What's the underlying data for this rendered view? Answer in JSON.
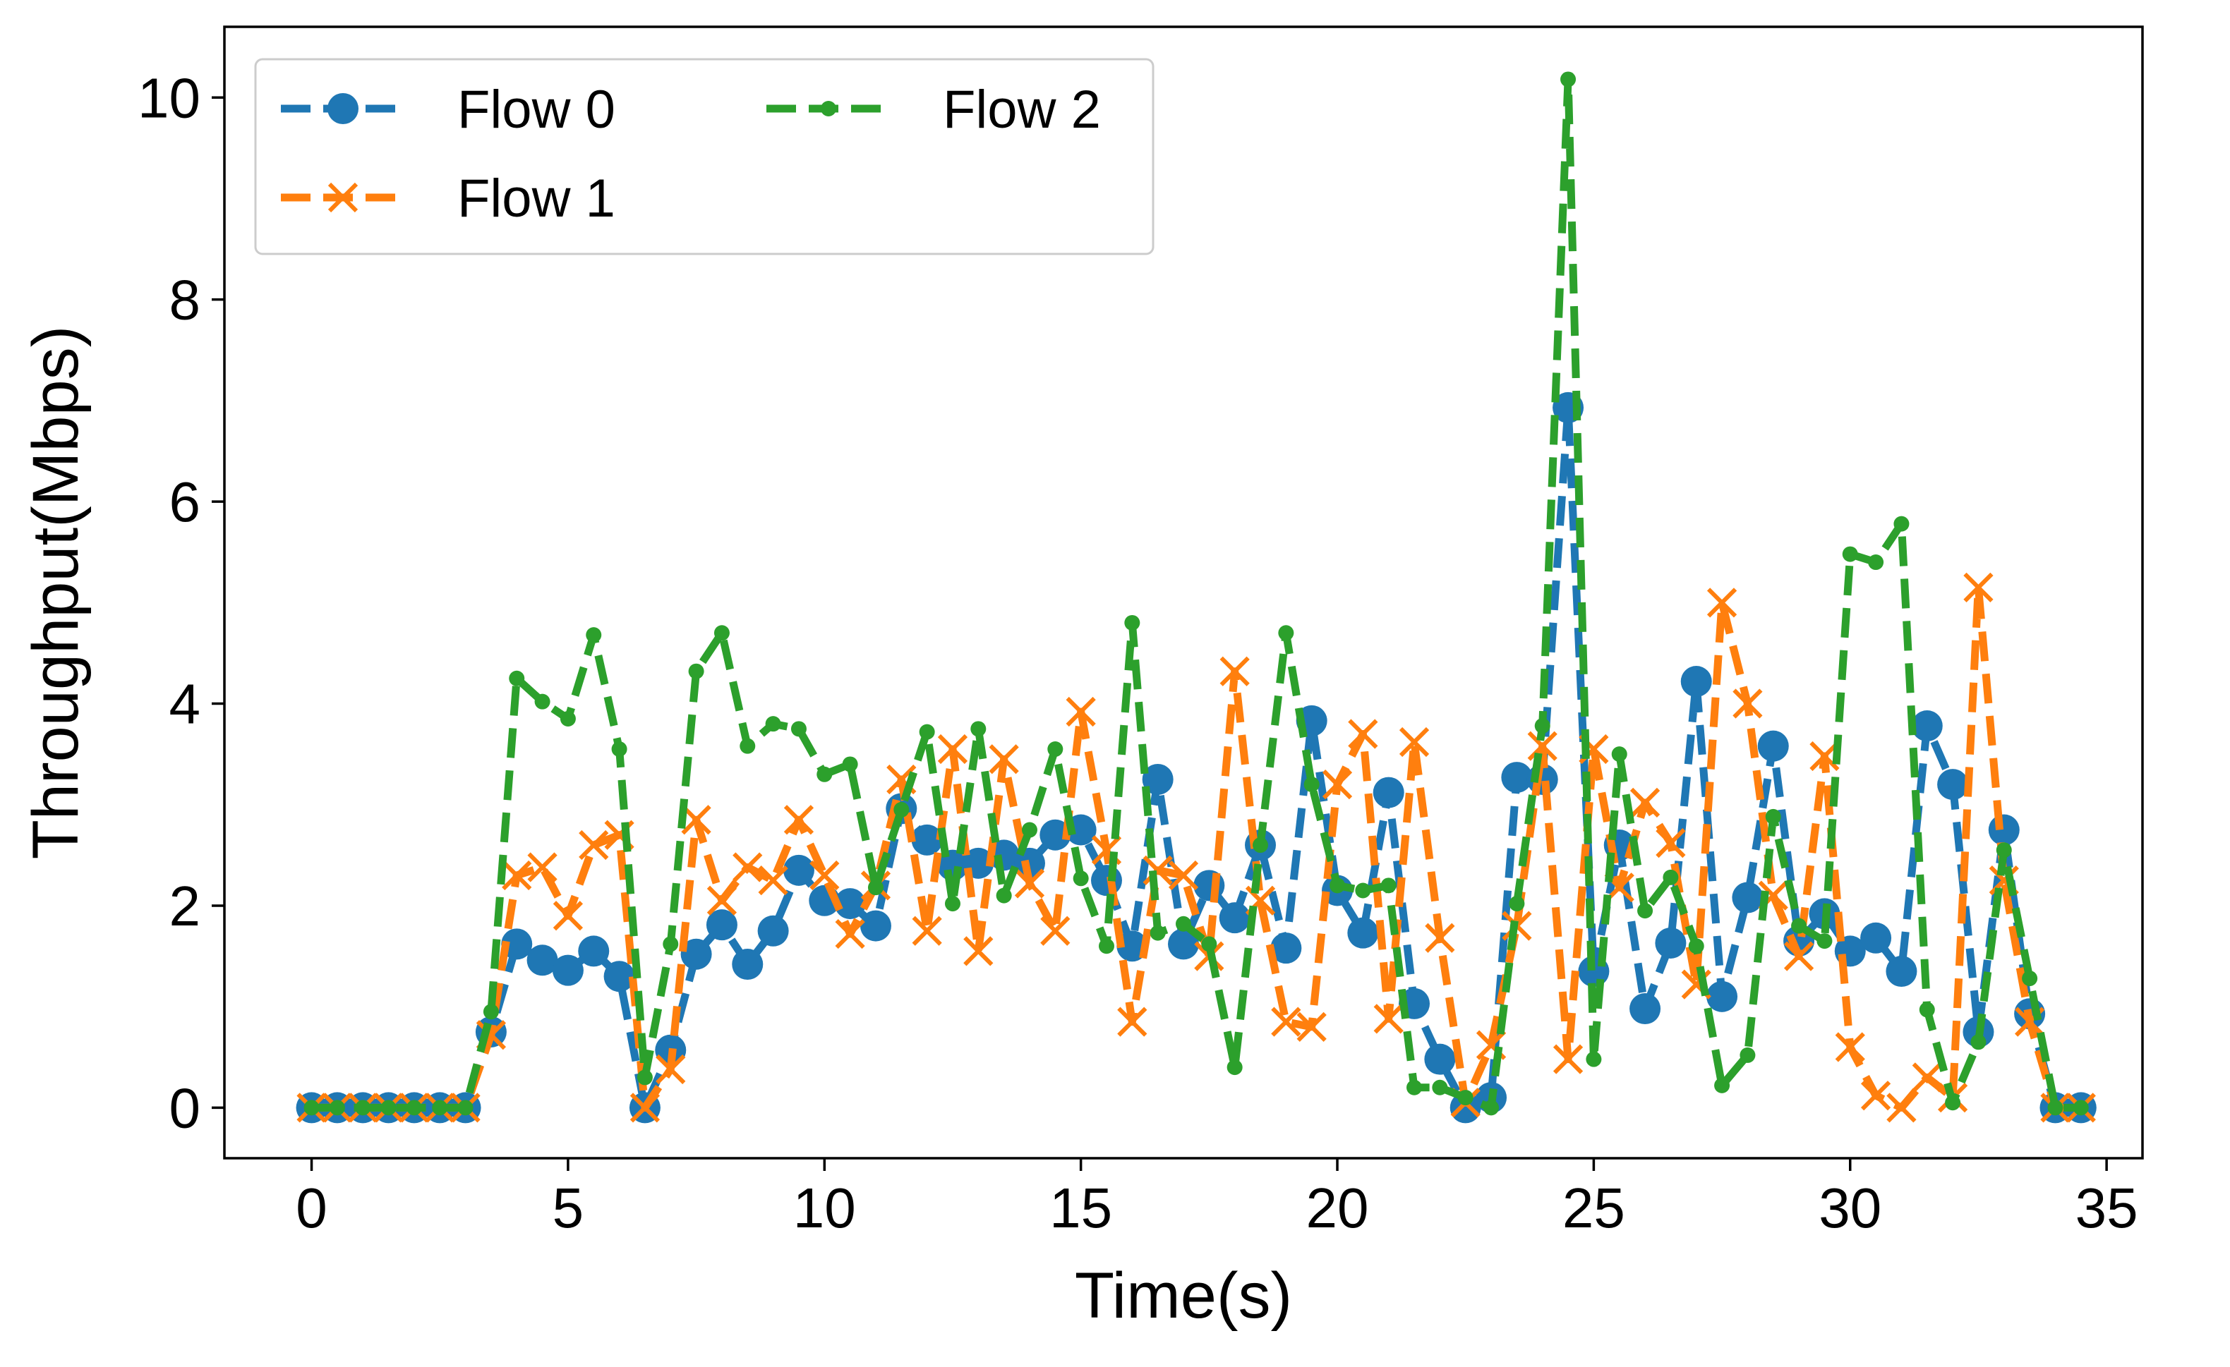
{
  "chart_data": {
    "type": "line",
    "xlabel": "Time(s)",
    "ylabel": "Throughput(Mbps)",
    "xlim": [
      -1.7,
      35.7
    ],
    "ylim": [
      -0.5,
      10.7
    ],
    "xticks": [
      0,
      5,
      10,
      15,
      20,
      25,
      30,
      35
    ],
    "yticks": [
      0,
      2,
      4,
      6,
      8,
      10
    ],
    "xtick_labels": [
      "0",
      "5",
      "10",
      "15",
      "20",
      "25",
      "30",
      "35"
    ],
    "ytick_labels": [
      "0",
      "2",
      "4",
      "6",
      "8",
      "10"
    ],
    "grid": false,
    "legend_position": "top-left",
    "x": [
      0,
      0.5,
      1,
      1.5,
      2,
      2.5,
      3,
      3.5,
      4,
      4.5,
      5,
      5.5,
      6,
      6.5,
      7,
      7.5,
      8,
      8.5,
      9,
      9.5,
      10,
      10.5,
      11,
      11.5,
      12,
      12.5,
      13,
      13.5,
      14,
      14.5,
      15,
      15.5,
      16,
      16.5,
      17,
      17.5,
      18,
      18.5,
      19,
      19.5,
      20,
      20.5,
      21,
      21.5,
      22,
      22.5,
      23,
      23.5,
      24,
      24.5,
      25,
      25.5,
      26,
      26.5,
      27,
      27.5,
      28,
      28.5,
      29,
      29.5,
      30,
      30.5,
      31,
      31.5,
      32,
      32.5,
      33,
      33.5,
      34,
      34.5
    ],
    "series": [
      {
        "name": "Flow 0",
        "color": "#1f77b4",
        "marker": "circle",
        "values": [
          0,
          0,
          0,
          0,
          0,
          0,
          0,
          0.75,
          1.62,
          1.46,
          1.36,
          1.55,
          1.3,
          0,
          0.57,
          1.52,
          1.81,
          1.42,
          1.75,
          2.35,
          2.05,
          2.02,
          1.8,
          2.96,
          2.65,
          2.4,
          2.42,
          2.5,
          2.42,
          2.7,
          2.75,
          2.25,
          1.6,
          3.25,
          1.62,
          2.2,
          1.88,
          2.6,
          1.58,
          3.83,
          2.15,
          1.73,
          3.12,
          1.03,
          0.48,
          0,
          0.1,
          3.27,
          3.25,
          6.93,
          1.35,
          2.6,
          0.98,
          1.63,
          4.22,
          1.1,
          2.08,
          3.58,
          1.65,
          1.92,
          1.55,
          1.68,
          1.35,
          3.78,
          3.2,
          0.75,
          2.75,
          0.93,
          0,
          0
        ]
      },
      {
        "name": "Flow 1",
        "color": "#ff7f0e",
        "marker": "x",
        "values": [
          0,
          0,
          0,
          0,
          0,
          0,
          0,
          0.72,
          2.3,
          2.38,
          1.9,
          2.6,
          2.7,
          0,
          0.38,
          2.85,
          2.05,
          2.38,
          2.25,
          2.85,
          2.3,
          1.72,
          2.2,
          3.25,
          1.75,
          3.55,
          1.55,
          3.45,
          2.22,
          1.75,
          3.92,
          2.55,
          0.85,
          2.35,
          2.3,
          1.5,
          4.32,
          2.05,
          0.85,
          0.8,
          3.2,
          3.7,
          0.88,
          3.62,
          1.68,
          0.05,
          0.62,
          1.8,
          3.58,
          0.48,
          3.55,
          2.18,
          3.02,
          2.62,
          1.22,
          5.0,
          4.0,
          2.1,
          1.5,
          3.48,
          0.6,
          0.12,
          0,
          0.3,
          0.1,
          5.15,
          2.25,
          0.85,
          0,
          0
        ]
      },
      {
        "name": "Flow 2",
        "color": "#2ca02c",
        "marker": "small-circle",
        "values": [
          0,
          0,
          0,
          0,
          0,
          0,
          0,
          0.95,
          4.25,
          4.02,
          3.85,
          4.68,
          3.55,
          0.3,
          1.62,
          4.32,
          4.7,
          3.58,
          3.8,
          3.75,
          3.3,
          3.4,
          2.18,
          2.95,
          3.72,
          2.02,
          3.75,
          2.1,
          2.75,
          3.55,
          2.27,
          1.6,
          4.8,
          1.73,
          1.82,
          1.62,
          0.4,
          2.6,
          4.7,
          3.2,
          2.2,
          2.15,
          2.2,
          0.2,
          0.2,
          0.1,
          0,
          2.02,
          3.78,
          10.18,
          0.48,
          3.5,
          1.95,
          2.28,
          1.6,
          0.22,
          0.52,
          2.88,
          1.8,
          1.65,
          5.48,
          5.4,
          5.78,
          0.97,
          0.05,
          0.65,
          2.55,
          1.28,
          0,
          0
        ]
      }
    ]
  }
}
